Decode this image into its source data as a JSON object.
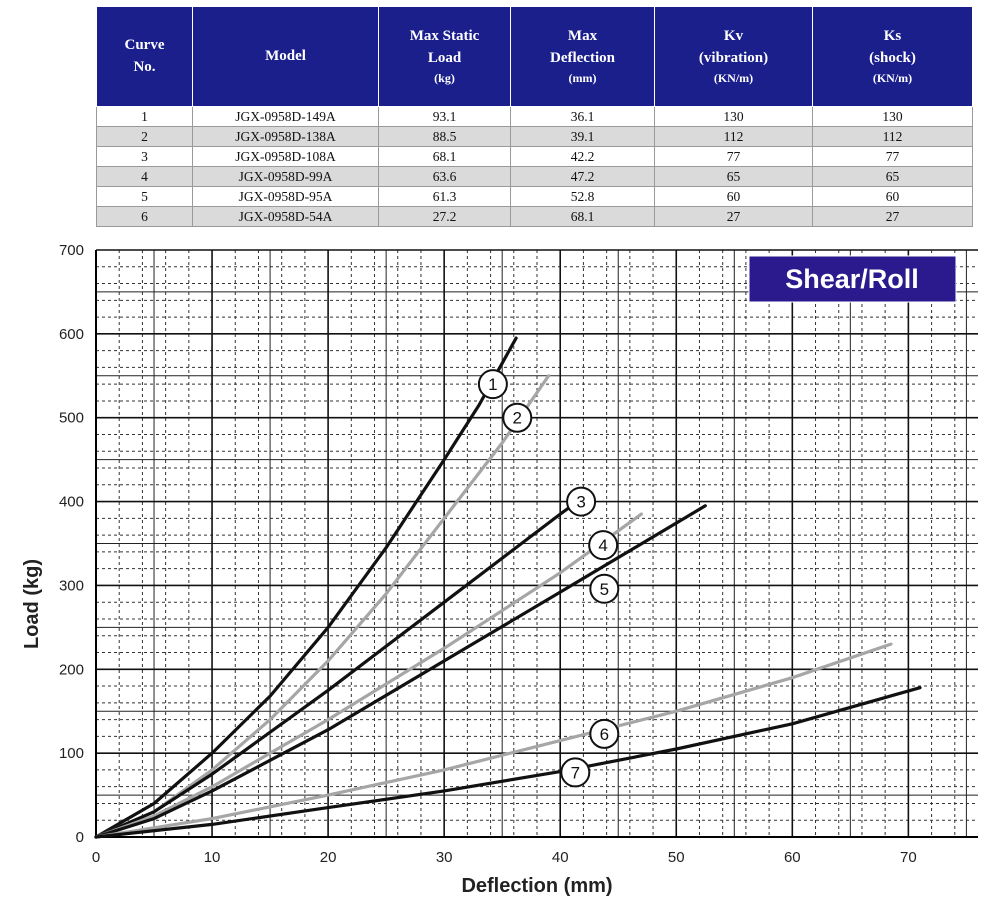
{
  "table": {
    "headers": [
      {
        "line1": "Curve",
        "line2": "No.",
        "unit": ""
      },
      {
        "line1": "Model",
        "line2": "",
        "unit": ""
      },
      {
        "line1": "Max Static",
        "line2": "Load",
        "unit": "(kg)"
      },
      {
        "line1": "Max",
        "line2": "Deflection",
        "unit": "(mm)"
      },
      {
        "line1": "Kv",
        "line2": "(vibration)",
        "unit": "(KN/m)"
      },
      {
        "line1": "Ks",
        "line2": "(shock)",
        "unit": "(KN/m)"
      }
    ],
    "rows": [
      [
        "1",
        "JGX-0958D-149A",
        "93.1",
        "36.1",
        "130",
        "130"
      ],
      [
        "2",
        "JGX-0958D-138A",
        "88.5",
        "39.1",
        "112",
        "112"
      ],
      [
        "3",
        "JGX-0958D-108A",
        "68.1",
        "42.2",
        "77",
        "77"
      ],
      [
        "4",
        "JGX-0958D-99A",
        "63.6",
        "47.2",
        "65",
        "65"
      ],
      [
        "5",
        "JGX-0958D-95A",
        "61.3",
        "52.8",
        "60",
        "60"
      ],
      [
        "6",
        "JGX-0958D-54A",
        "27.2",
        "68.1",
        "27",
        "27"
      ]
    ]
  },
  "colors": {
    "header_bg": "#1b1f8c",
    "badge_bg": "#2a1a8e",
    "curve_black": "#111111",
    "curve_gray": "#a6a6a6",
    "row_shade": "#dadada"
  },
  "chart_data": {
    "type": "line",
    "badge": "Shear/Roll",
    "xlabel": "Deflection (mm)",
    "ylabel": "Load (kg)",
    "xlim": [
      0,
      76
    ],
    "ylim": [
      0,
      700
    ],
    "xticks": [
      0,
      10,
      20,
      30,
      40,
      50,
      60,
      70
    ],
    "yticks": [
      0,
      100,
      200,
      300,
      400,
      500,
      600,
      700
    ],
    "grid": true,
    "series": [
      {
        "label": "1",
        "color": "gray_no",
        "style": "black",
        "points": [
          [
            0,
            0
          ],
          [
            5,
            40
          ],
          [
            10,
            100
          ],
          [
            15,
            168
          ],
          [
            20,
            250
          ],
          [
            25,
            345
          ],
          [
            30,
            450
          ],
          [
            33,
            515
          ],
          [
            36.2,
            595
          ]
        ],
        "marker_at": [
          34.2,
          540
        ]
      },
      {
        "label": "2",
        "style": "gray",
        "points": [
          [
            0,
            0
          ],
          [
            5,
            30
          ],
          [
            10,
            80
          ],
          [
            15,
            140
          ],
          [
            20,
            210
          ],
          [
            25,
            290
          ],
          [
            30,
            380
          ],
          [
            35,
            470
          ],
          [
            39,
            550
          ]
        ],
        "marker_at": [
          36.3,
          500
        ]
      },
      {
        "label": "3",
        "style": "black",
        "points": [
          [
            0,
            0
          ],
          [
            5,
            30
          ],
          [
            10,
            75
          ],
          [
            20,
            175
          ],
          [
            30,
            280
          ],
          [
            40,
            385
          ],
          [
            41.5,
            400
          ]
        ],
        "marker_at": [
          41.8,
          400
        ]
      },
      {
        "label": "4",
        "style": "gray",
        "points": [
          [
            0,
            0
          ],
          [
            5,
            25
          ],
          [
            10,
            60
          ],
          [
            20,
            140
          ],
          [
            30,
            225
          ],
          [
            40,
            315
          ],
          [
            47,
            385
          ]
        ],
        "marker_at": [
          43.7,
          348
        ]
      },
      {
        "label": "5",
        "style": "black",
        "points": [
          [
            0,
            0
          ],
          [
            5,
            22
          ],
          [
            10,
            55
          ],
          [
            20,
            128
          ],
          [
            30,
            210
          ],
          [
            40,
            292
          ],
          [
            52.5,
            395
          ]
        ],
        "marker_at": [
          43.8,
          296
        ]
      },
      {
        "label": "6",
        "style": "gray",
        "points": [
          [
            0,
            0
          ],
          [
            10,
            22
          ],
          [
            20,
            50
          ],
          [
            30,
            80
          ],
          [
            40,
            115
          ],
          [
            50,
            150
          ],
          [
            60,
            190
          ],
          [
            68.5,
            230
          ]
        ],
        "marker_at": [
          43.8,
          123
        ]
      },
      {
        "label": "7",
        "style": "black",
        "points": [
          [
            0,
            0
          ],
          [
            10,
            15
          ],
          [
            20,
            35
          ],
          [
            30,
            55
          ],
          [
            40,
            78
          ],
          [
            50,
            105
          ],
          [
            60,
            135
          ],
          [
            71,
            178
          ]
        ],
        "marker_at": [
          41.3,
          77
        ]
      }
    ]
  }
}
